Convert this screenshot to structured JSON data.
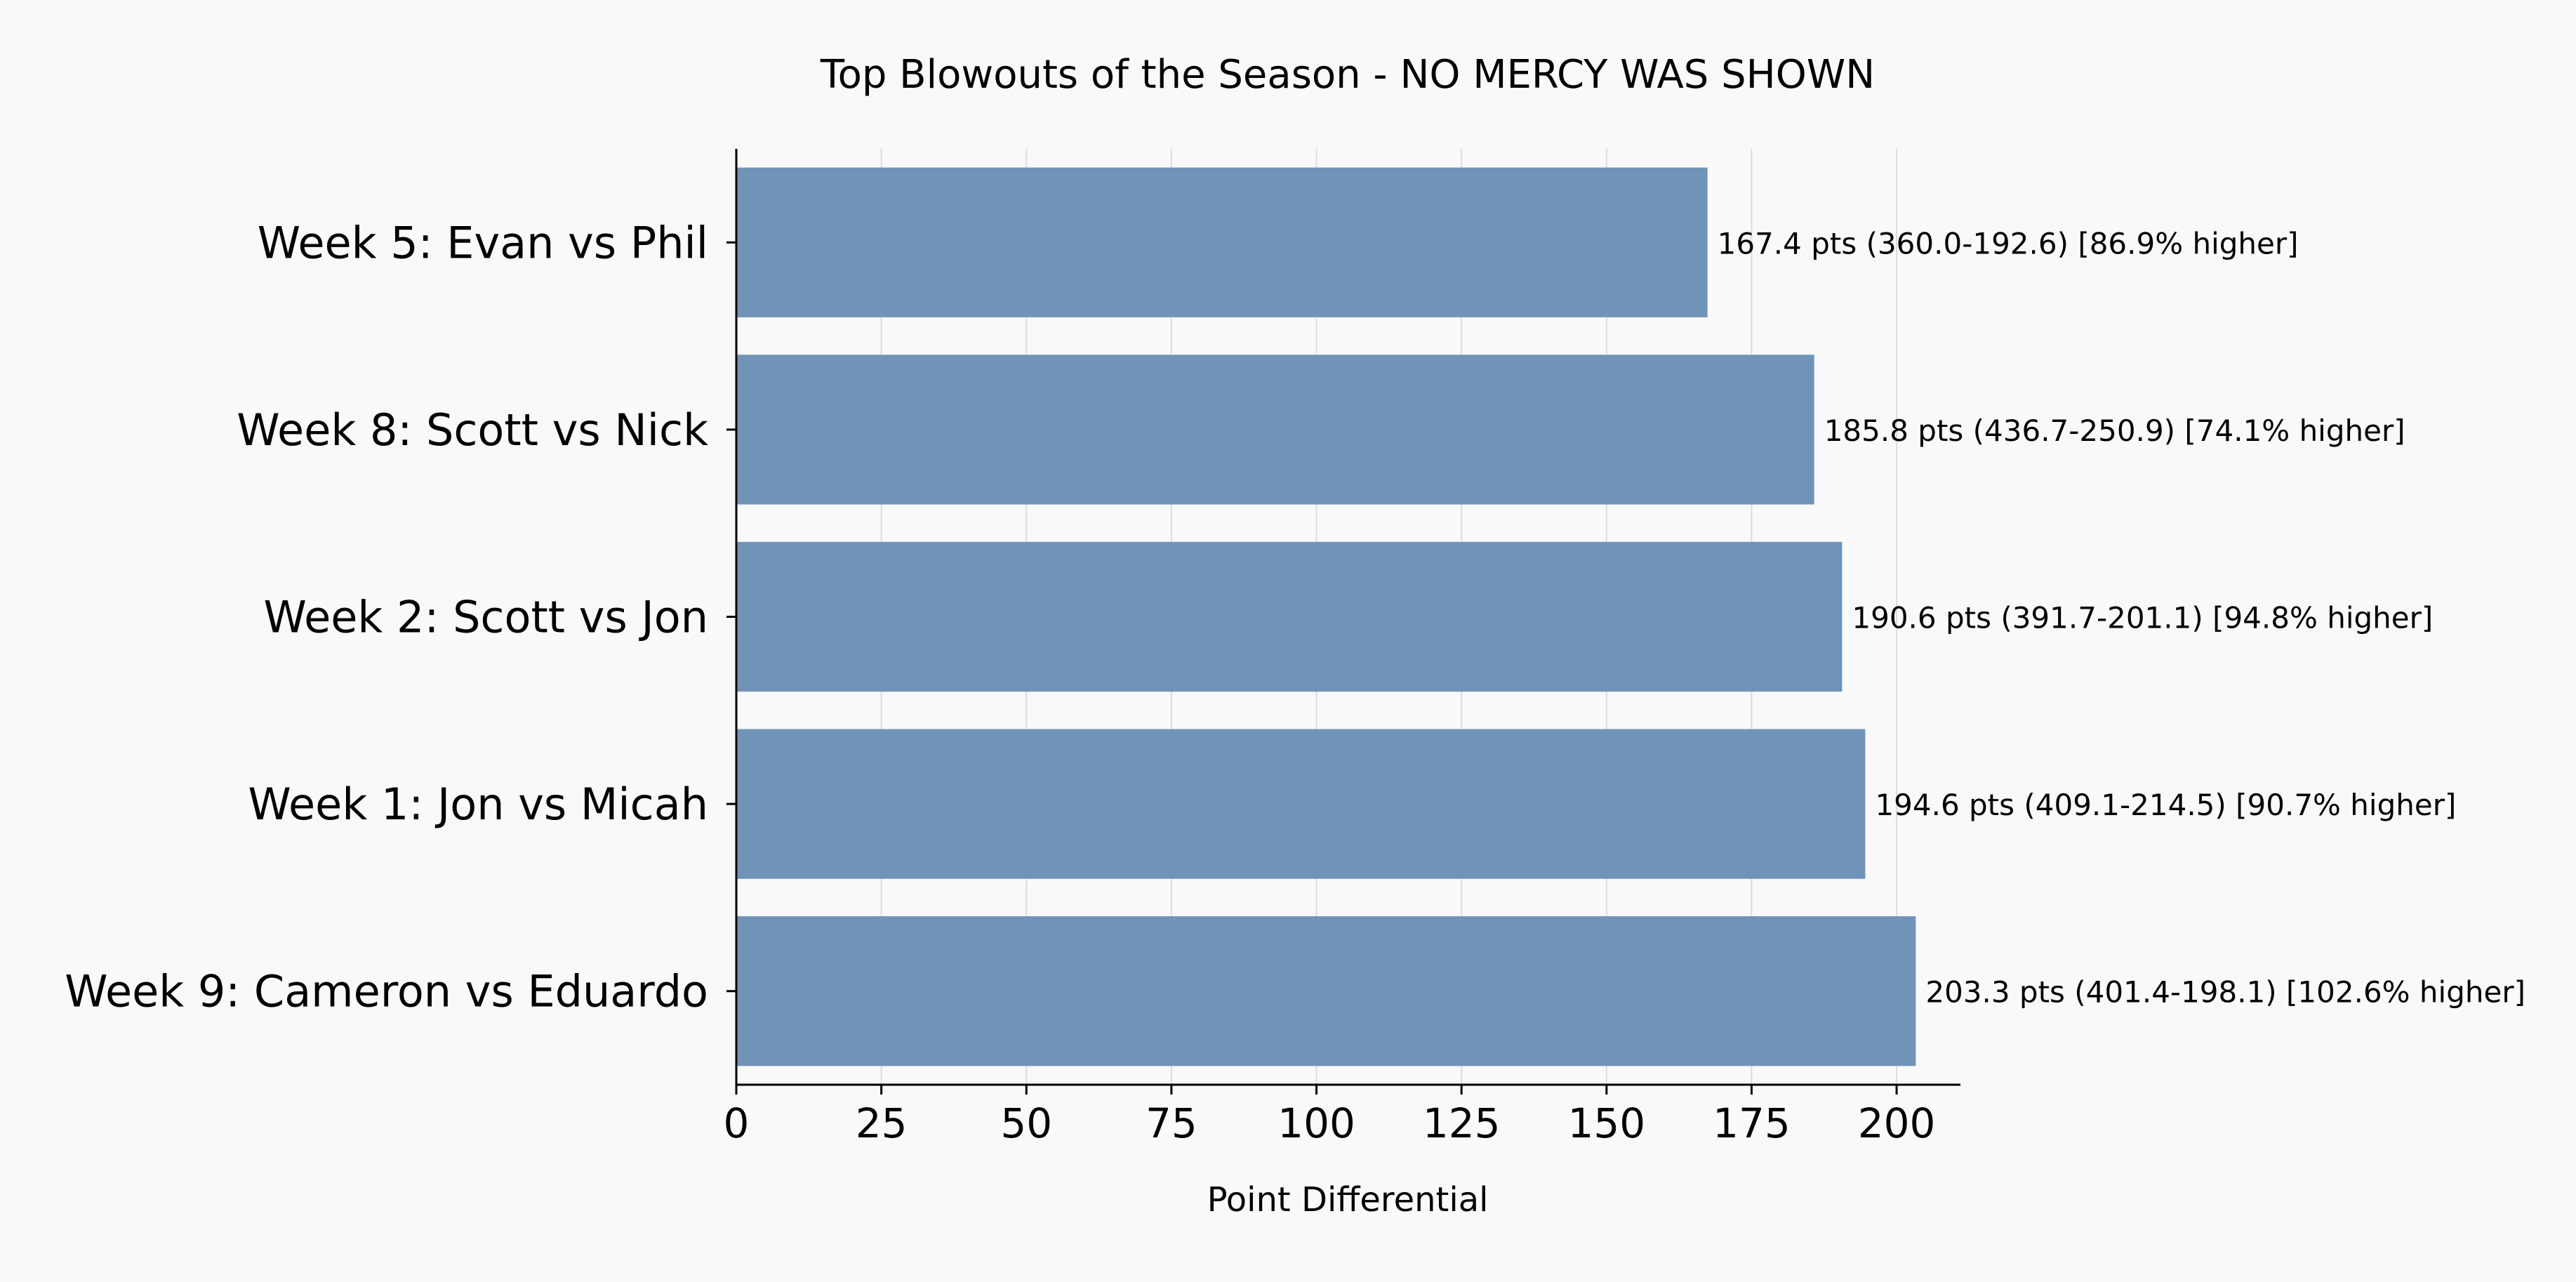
{
  "chart_data": {
    "type": "bar",
    "orientation": "horizontal",
    "title": "Top Blowouts of the Season - NO MERCY WAS SHOWN",
    "xlabel": "Point Differential",
    "ylabel": "",
    "xlim": [
      0,
      211
    ],
    "xticks": [
      0,
      25,
      50,
      75,
      100,
      125,
      150,
      175,
      200
    ],
    "grid": "vertical",
    "legend": "none",
    "bar_color": "#7193b8",
    "categories": [
      "Week 5: Evan vs Phil",
      "Week 8: Scott vs Nick",
      "Week 2: Scott vs Jon",
      "Week 1: Jon vs Micah",
      "Week 9: Cameron vs Eduardo"
    ],
    "values": [
      167.4,
      185.8,
      190.6,
      194.6,
      203.3
    ],
    "data_labels": [
      "167.4 pts (360.0-192.6) [86.9% higher]",
      "185.8 pts (436.7-250.9) [74.1% higher]",
      "190.6 pts (391.7-201.1) [94.8% higher]",
      "194.6 pts (409.1-214.5) [90.7% higher]",
      "203.3 pts (401.4-198.1) [102.6% higher]"
    ]
  }
}
